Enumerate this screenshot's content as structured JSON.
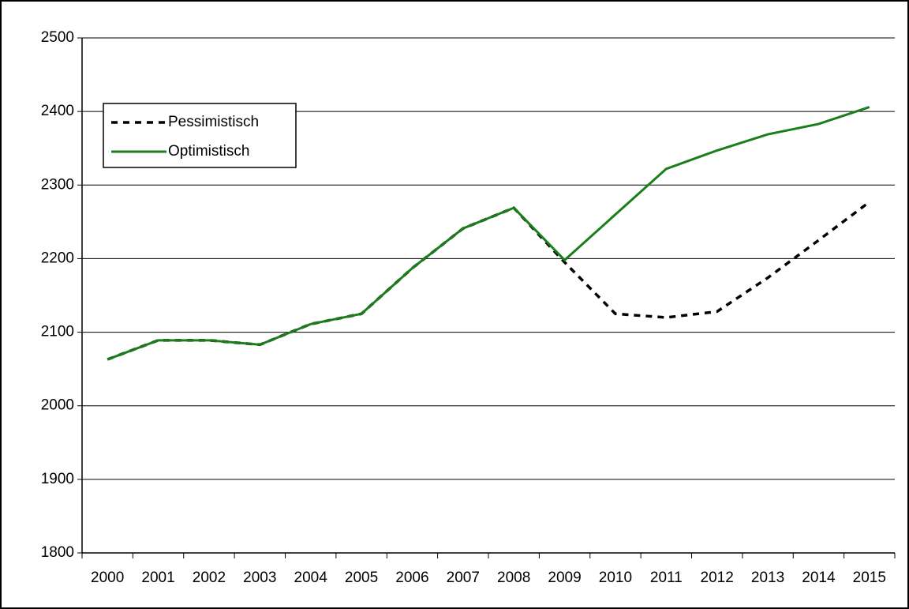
{
  "chart_data": {
    "type": "line",
    "categories": [
      "2000",
      "2001",
      "2002",
      "2003",
      "2004",
      "2005",
      "2006",
      "2007",
      "2008",
      "2009",
      "2010",
      "2011",
      "2012",
      "2013",
      "2014",
      "2015"
    ],
    "series": [
      {
        "name": "Pessimistisch",
        "color": "#000000",
        "dash": true,
        "values": [
          2063,
          2089,
          2089,
          2083,
          2111,
          2125,
          2187,
          2241,
          2269,
          2195,
          2125,
          2120,
          2128,
          2174,
          2225,
          2277
        ]
      },
      {
        "name": "Optimistisch",
        "color": "#1a7f1a",
        "dash": false,
        "values": [
          2063,
          2089,
          2089,
          2083,
          2111,
          2125,
          2187,
          2241,
          2269,
          2198,
          2260,
          2322,
          2347,
          2369,
          2383,
          2406
        ]
      }
    ],
    "ylim": [
      1800,
      2500
    ],
    "yticks": [
      1800,
      1900,
      2000,
      2100,
      2200,
      2300,
      2400,
      2500
    ],
    "grid": true,
    "legend": "upper left"
  }
}
